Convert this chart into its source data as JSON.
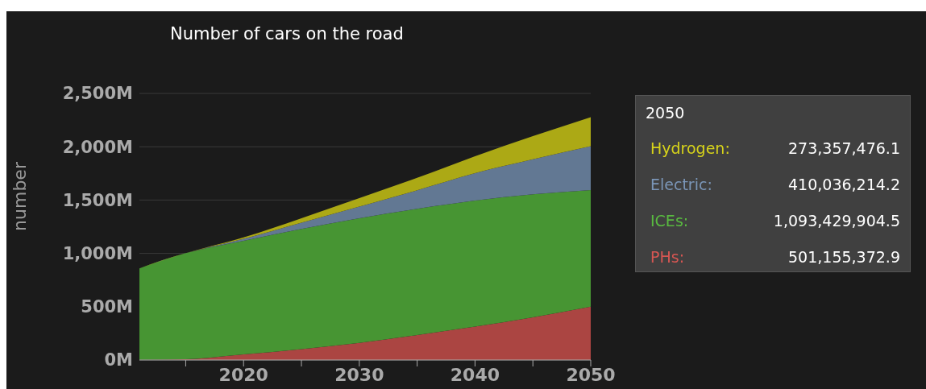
{
  "chart_data": {
    "type": "area",
    "title": "Number of cars on the road",
    "ylabel": "number",
    "stacked": true,
    "x": [
      2011,
      2015,
      2020,
      2025,
      2030,
      2035,
      2040,
      2045,
      2050
    ],
    "series": [
      {
        "name": "PHs:",
        "color": "#ab4542",
        "values": [
          2000000,
          8000000,
          52000000,
          102000000,
          160000000,
          235000000,
          314000000,
          401000000,
          501155372.9
        ]
      },
      {
        "name": "ICEs:",
        "color": "#479533",
        "values": [
          858000000,
          994000000,
          1066000000,
          1127000000,
          1170000000,
          1183000000,
          1182000000,
          1153000000,
          1093429904.5
        ]
      },
      {
        "name": "Electric:",
        "color": "#627893",
        "values": [
          0,
          0,
          18000000,
          58000000,
          108000000,
          174000000,
          256000000,
          328000000,
          410036214.2
        ]
      },
      {
        "name": "Hydrogen:",
        "color": "#aca915",
        "values": [
          0,
          0,
          14000000,
          43000000,
          81000000,
          116000000,
          159000000,
          218000000,
          273357476.1
        ]
      }
    ],
    "xlim": [
      2011,
      2050
    ],
    "xticks": [
      {
        "value": 2015,
        "label": null
      },
      2020,
      {
        "value": 2025,
        "label": null
      },
      2030,
      {
        "value": 2035,
        "label": null
      },
      2040,
      {
        "value": 2045,
        "label": null
      },
      2050
    ],
    "ylim": [
      0,
      2500000000
    ],
    "yticks": [
      {
        "value": 0,
        "label": "0M"
      },
      {
        "value": 500000000,
        "label": "500M"
      },
      {
        "value": 1000000000,
        "label": "1,000M"
      },
      {
        "value": 1500000000,
        "label": "1,500M"
      },
      {
        "value": 2000000000,
        "label": "2,000M"
      },
      {
        "value": 2500000000,
        "label": "2,500M"
      }
    ],
    "grid": "y",
    "legend": "right",
    "annotations": [
      "2050",
      "501,155,372.9",
      "1,093,429,904.5",
      "410,036,214.2",
      "273,357,476.1"
    ]
  }
}
